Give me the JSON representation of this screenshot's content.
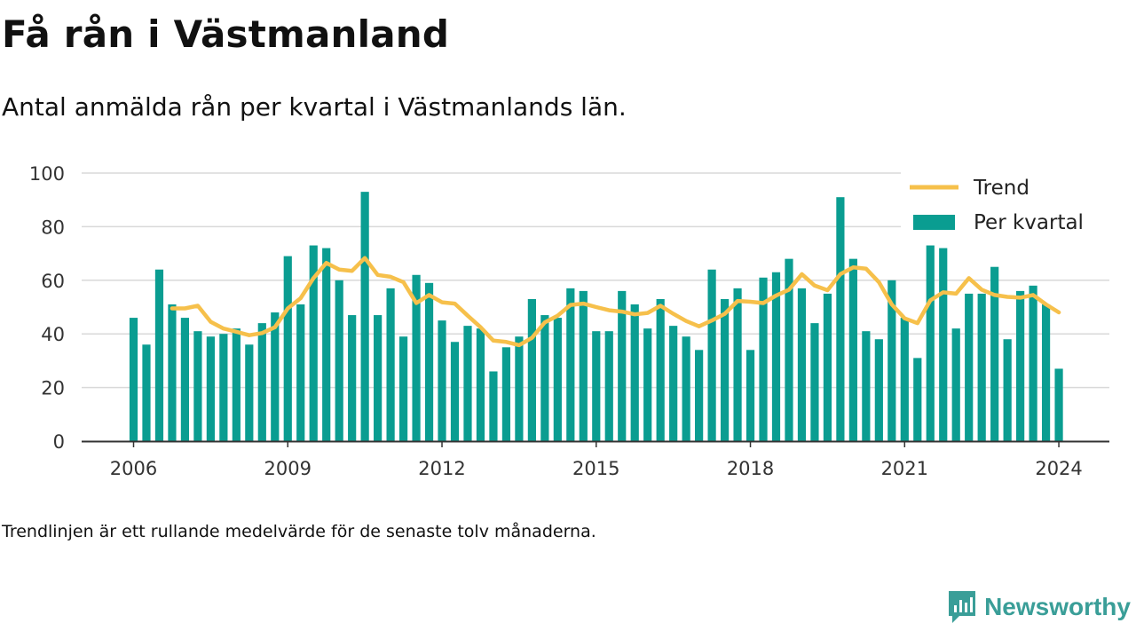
{
  "title": "Få rån i Västmanland",
  "subtitle": "Antal anmälda rån per kvartal i Västmanlands län.",
  "footnote": "Trendlinjen är ett rullande medelvärde för de senaste tolv månaderna.",
  "brand": "Newsworthy",
  "colors": {
    "bar": "#0a9d91",
    "trend": "#f6c04b",
    "grid": "#d9d9d9",
    "axis": "#333333",
    "brand": "#3a9e98"
  },
  "chart_data": {
    "type": "bar",
    "title": "",
    "xlabel": "",
    "ylabel": "",
    "ylim": [
      0,
      100
    ],
    "yticks": [
      0,
      20,
      40,
      60,
      80,
      100
    ],
    "xticks": [
      "2006",
      "2009",
      "2012",
      "2015",
      "2018",
      "2021",
      "2024"
    ],
    "grid": true,
    "legend_position": "top-right",
    "legend": [
      {
        "label": "Trend",
        "kind": "line"
      },
      {
        "label": "Per kvartal",
        "kind": "bar"
      }
    ],
    "x_start_year": 2006,
    "series": [
      {
        "name": "Per kvartal",
        "kind": "bar",
        "values": [
          46,
          36,
          64,
          51,
          46,
          41,
          39,
          40,
          42,
          36,
          44,
          48,
          69,
          51,
          73,
          72,
          60,
          47,
          93,
          47,
          57,
          39,
          62,
          59,
          45,
          37,
          43,
          42,
          26,
          35,
          39,
          53,
          47,
          46,
          57,
          56,
          41,
          41,
          56,
          51,
          42,
          53,
          43,
          39,
          34,
          64,
          53,
          57,
          34,
          61,
          63,
          68,
          57,
          44,
          55,
          91,
          68,
          41,
          38,
          60,
          46,
          31,
          73,
          72,
          42,
          55,
          55,
          65,
          38,
          56,
          58,
          51,
          27
        ]
      },
      {
        "name": "Trend",
        "kind": "line",
        "start_index": 3,
        "values": [
          49.5,
          49.5,
          50.5,
          44.5,
          42,
          40.8,
          39.5,
          40.3,
          42.5,
          49.5,
          53.3,
          60.8,
          66.5,
          64,
          63.5,
          68.3,
          62,
          61.3,
          59.3,
          51.5,
          54.5,
          51.8,
          51.3,
          46.8,
          42.5,
          37.5,
          37,
          35.8,
          38.5,
          44.3,
          46.8,
          50.8,
          51.3,
          50,
          48.8,
          48.3,
          47.3,
          47.8,
          50.5,
          47.5,
          44.8,
          42.8,
          45,
          47.5,
          52.3,
          52,
          51.5,
          54.3,
          56.5,
          62.3,
          58,
          56.3,
          62.3,
          64.8,
          64.3,
          59.3,
          51,
          45.8,
          44,
          52.5,
          55.5,
          55,
          60.8,
          56.5,
          54.5,
          53.8,
          53.5,
          54.5,
          51,
          48
        ]
      }
    ]
  }
}
